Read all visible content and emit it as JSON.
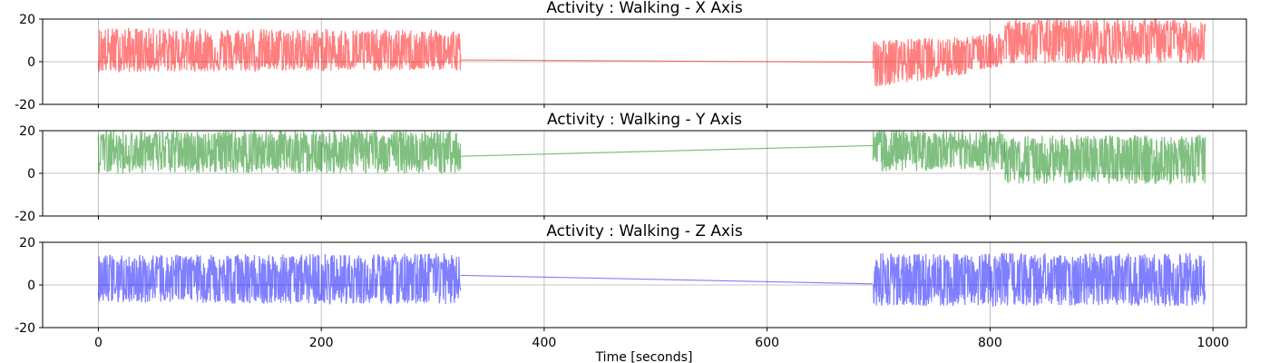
{
  "figure": {
    "xlabel": "Time [seconds]"
  },
  "chart_data": [
    {
      "type": "line",
      "title": "Activity : Walking - X Axis",
      "xlabel": "",
      "ylabel": "",
      "xlim": [
        -50,
        1030
      ],
      "ylim": [
        -20,
        20
      ],
      "xticks": [
        0,
        200,
        400,
        600,
        800,
        1000
      ],
      "yticks": [
        -20,
        0,
        20
      ],
      "grid": true,
      "series": [
        {
          "color": "#ff0000",
          "opacity": 0.5,
          "segments": [
            {
              "x": [
                0,
                325
              ],
              "y_mean": [
                4.0,
                3.5
              ],
              "y_min": [
                -5,
                -4
              ],
              "y_max": [
                16,
                15
              ]
            },
            {
              "x": [
                325,
                695
              ],
              "y": [
                0.8,
                -0.2
              ]
            },
            {
              "x": [
                695,
                780
              ],
              "y_mean": [
                0.5,
                3.0
              ],
              "y_min": [
                -12,
                -6
              ],
              "y_max": [
                10,
                12
              ]
            },
            {
              "x": [
                780,
                813
              ],
              "y_mean": [
                3.0,
                5.0
              ],
              "y_min": [
                -5,
                -2
              ],
              "y_max": [
                12,
                14
              ]
            },
            {
              "x": [
                813,
                993
              ],
              "y_mean": [
                10.0,
                10.0
              ],
              "y_min": [
                -1,
                -1
              ],
              "y_max": [
                20,
                20
              ]
            }
          ]
        }
      ]
    },
    {
      "type": "line",
      "title": "Activity : Walking - Y Axis",
      "xlabel": "",
      "ylabel": "",
      "xlim": [
        -50,
        1030
      ],
      "ylim": [
        -20,
        20
      ],
      "xticks": [
        0,
        200,
        400,
        600,
        800,
        1000
      ],
      "yticks": [
        -20,
        0,
        20
      ],
      "grid": true,
      "series": [
        {
          "color": "#008000",
          "opacity": 0.5,
          "segments": [
            {
              "x": [
                0,
                325
              ],
              "y_mean": [
                11.0,
                11.0
              ],
              "y_min": [
                0,
                0
              ],
              "y_max": [
                20,
                20
              ]
            },
            {
              "x": [
                325,
                695
              ],
              "y": [
                8.0,
                13.0
              ]
            },
            {
              "x": [
                695,
                813
              ],
              "y_mean": [
                11.0,
                10.0
              ],
              "y_min": [
                1,
                1
              ],
              "y_max": [
                20,
                20
              ]
            },
            {
              "x": [
                813,
                993
              ],
              "y_mean": [
                7.0,
                6.0
              ],
              "y_min": [
                -5,
                -5
              ],
              "y_max": [
                18,
                18
              ]
            }
          ]
        }
      ]
    },
    {
      "type": "line",
      "title": "Activity : Walking - Z Axis",
      "xlabel": "Time [seconds]",
      "ylabel": "",
      "xlim": [
        -50,
        1030
      ],
      "ylim": [
        -20,
        20
      ],
      "xticks": [
        0,
        200,
        400,
        600,
        800,
        1000
      ],
      "yticks": [
        -20,
        0,
        20
      ],
      "grid": true,
      "series": [
        {
          "color": "#0000ff",
          "opacity": 0.5,
          "segments": [
            {
              "x": [
                0,
                325
              ],
              "y_mean": [
                2.0,
                2.0
              ],
              "y_min": [
                -8,
                -10
              ],
              "y_max": [
                14,
                15
              ]
            },
            {
              "x": [
                325,
                695
              ],
              "y": [
                4.5,
                0.5
              ]
            },
            {
              "x": [
                695,
                993
              ],
              "y_mean": [
                2.0,
                2.0
              ],
              "y_min": [
                -10,
                -10
              ],
              "y_max": [
                15,
                15
              ]
            }
          ]
        }
      ]
    }
  ]
}
